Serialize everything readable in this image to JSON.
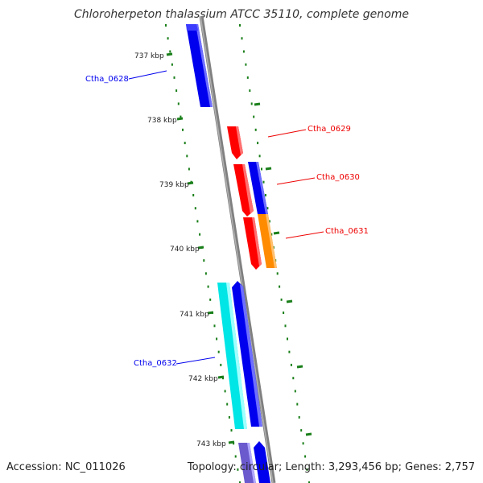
{
  "title": "Chloroherpeton thalassium ATCC 35110, complete genome",
  "footer": {
    "accession": "Accession: NC_011026",
    "summary": "Topology: circular; Length: 3,293,456 bp; Genes: 2,757"
  },
  "ticks": [
    "737 kbp",
    "738 kbp",
    "739 kbp",
    "740 kbp",
    "741 kbp",
    "742 kbp",
    "743 kbp"
  ],
  "genes": [
    {
      "name": "Ctha_0628",
      "color": "#0000ee"
    },
    {
      "name": "Ctha_0629",
      "color": "#ee0000"
    },
    {
      "name": "Ctha_0630",
      "color": "#ee0000"
    },
    {
      "name": "Ctha_0631",
      "color": "#ee0000"
    },
    {
      "name": "Ctha_0632",
      "color": "#0000ee"
    }
  ],
  "colors": {
    "blue": "#0000ee",
    "red": "#ff0000",
    "orange": "#ff8c00",
    "cyan": "#00e5e5",
    "lavender": "#6a5acd",
    "backbone": "#808080",
    "dots": "#1a7f1a"
  }
}
